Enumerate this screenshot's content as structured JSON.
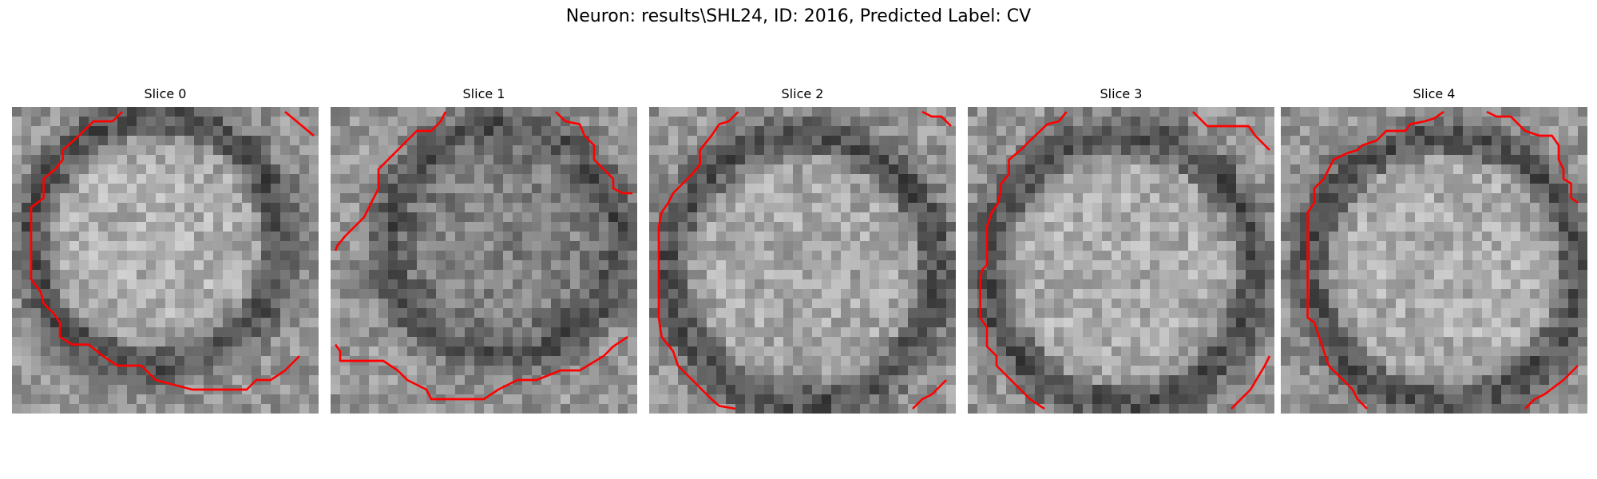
{
  "figure": {
    "title": "Neuron: results\\SHL24, ID: 2016, Predicted Label: CV"
  },
  "panels": [
    {
      "label": "Slice 0"
    },
    {
      "label": "Slice 1"
    },
    {
      "label": "Slice 2"
    },
    {
      "label": "Slice 3"
    },
    {
      "label": "Slice 4"
    }
  ],
  "colors": {
    "contour": "#ff0000",
    "background": "#ffffff"
  }
}
